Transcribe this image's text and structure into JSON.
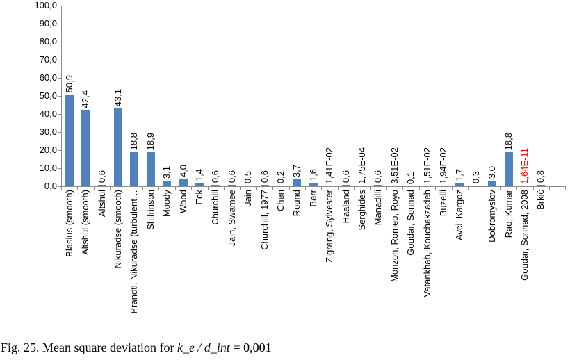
{
  "chart_data": {
    "type": "bar",
    "title": "",
    "xlabel": "",
    "ylabel": "",
    "ylim": [
      0,
      100
    ],
    "ytick_step": 10,
    "ytick_labels": [
      "0,0",
      "10,0",
      "20,0",
      "30,0",
      "40,0",
      "50,0",
      "60,0",
      "70,0",
      "80,0",
      "90,0",
      "100,0"
    ],
    "grid": false,
    "legend": "none",
    "bar_color": "#4F81BD",
    "axis_color": "#8c8c8c",
    "text_color": "#000000",
    "highlight_color": "#FF0000",
    "highlight_index": 28,
    "categories": [
      "Blasius (smooth)",
      "Altshul (smooth)",
      "Altshul",
      "Nikuradse (smooth)",
      "Prandtl, Nikuradse (turbulent…",
      "Shifrinson",
      "Moody",
      "Wood",
      "Eck",
      "Churchill",
      "Jain, Swamee",
      "Jain",
      "Churchill, 1977",
      "Chen",
      "Round",
      "Barr",
      "Zigrang, Sylvester",
      "Haaland",
      "Serghides",
      "Manadilli",
      "Monzon, Romeo, Royo",
      "Goudar, Sonnad",
      "Vatankhah, Kouchakzadeh",
      "Buzelli",
      "Avci, Kargoz",
      "",
      "Dobromyslov",
      "Rao, Kumar",
      "Goudar, Sonnad, 2008",
      "Brkić"
    ],
    "values": [
      50.9,
      42.4,
      0.6,
      43.1,
      18.8,
      18.9,
      3.1,
      4.0,
      1.4,
      0.6,
      0.6,
      0.5,
      0.6,
      0.2,
      3.7,
      1.6,
      0.0141,
      0.6,
      0.000175,
      0.6,
      0.0351,
      0.1,
      0.0151,
      0.0194,
      1.7,
      0.3,
      3.0,
      18.8,
      1.64e-11,
      0.8
    ],
    "value_labels": [
      "50,9",
      "42,4",
      "0,6",
      "43,1",
      "18,8",
      "18,9",
      "3,1",
      "4,0",
      "1,4",
      "0,6",
      "0,6",
      "0,5",
      "0,6",
      "0,2",
      "3,7",
      "1,6",
      "1,41E-02",
      "0,6",
      "1,75E-04",
      "0,6",
      "3,51E-02",
      "0,1",
      "1,51E-02",
      "1,94E-02",
      "1,7",
      "0,3",
      "3,0",
      "18,8",
      "1,64E-11",
      "0,8"
    ]
  },
  "caption": {
    "prefix": "Fig. 25. Mean square deviation for ",
    "math": "k_e / d_int",
    "suffix": " = 0,001"
  }
}
